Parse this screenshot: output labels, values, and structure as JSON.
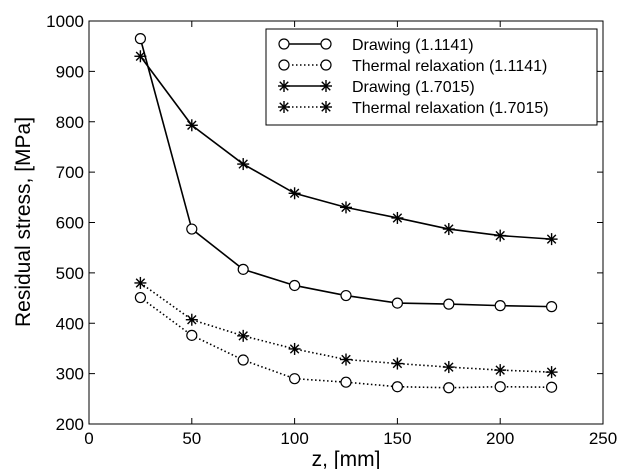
{
  "chart_data": {
    "type": "line",
    "xlabel": "z, [mm]",
    "ylabel": "Residual stress, [MPa]",
    "xlim": [
      0,
      250
    ],
    "ylim": [
      200,
      1000
    ],
    "xticks": [
      0,
      50,
      100,
      150,
      200,
      250
    ],
    "yticks": [
      200,
      300,
      400,
      500,
      600,
      700,
      800,
      900,
      1000
    ],
    "grid": false,
    "legend_position": "top-right",
    "x": [
      25,
      50,
      75,
      100,
      125,
      150,
      175,
      200,
      225
    ],
    "series": [
      {
        "name": "Drawing (1.1141)",
        "marker": "circle",
        "line": "solid",
        "values": [
          965,
          587,
          507,
          475,
          455,
          440,
          438,
          435,
          433
        ]
      },
      {
        "name": "Thermal relaxation (1.1141)",
        "marker": "circle",
        "line": "dotted",
        "values": [
          451,
          376,
          327,
          290,
          283,
          274,
          272,
          274,
          273
        ]
      },
      {
        "name": "Drawing (1.7015)",
        "marker": "star",
        "line": "solid",
        "values": [
          930,
          793,
          716,
          658,
          630,
          609,
          587,
          574,
          567
        ]
      },
      {
        "name": "Thermal relaxation (1.7015)",
        "marker": "star",
        "line": "dotted",
        "values": [
          480,
          407,
          375,
          349,
          328,
          320,
          313,
          307,
          303
        ]
      }
    ]
  }
}
